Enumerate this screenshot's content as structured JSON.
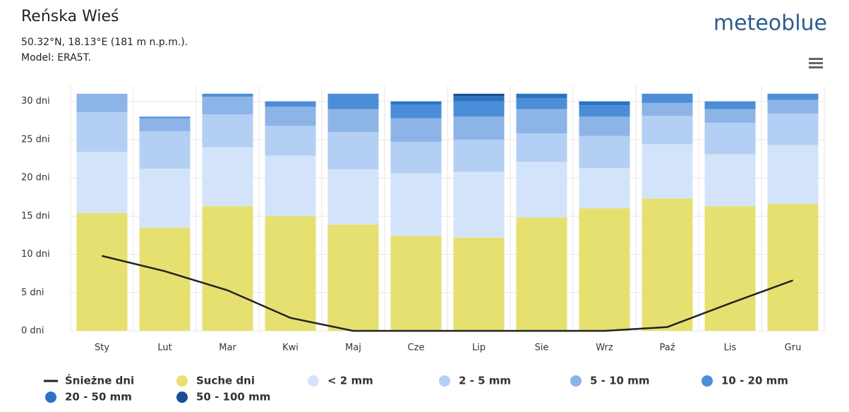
{
  "brand": "meteoblue",
  "chart_data": {
    "type": "bar",
    "stacked": true,
    "title": "Reńska Wieś",
    "subtitle": [
      "50.32°N, 18.13°E (181 m n.p.m.).",
      "Model: ERA5T."
    ],
    "categories": [
      "Sty",
      "Lut",
      "Mar",
      "Kwi",
      "Maj",
      "Cze",
      "Lip",
      "Sie",
      "Wrz",
      "Paź",
      "Lis",
      "Gru"
    ],
    "series": [
      {
        "name": "Śnieżne dni",
        "type": "line",
        "color": "#222222",
        "values": [
          9.8,
          7.8,
          5.3,
          1.7,
          0,
          0,
          0,
          0,
          0,
          0.5,
          3.6,
          6.6
        ]
      },
      {
        "name": "Suche dni",
        "color": "#e6e070",
        "values": [
          15.4,
          13.5,
          16.3,
          15.0,
          13.9,
          12.4,
          12.2,
          14.8,
          16.0,
          17.3,
          16.3,
          16.6
        ]
      },
      {
        "name": "< 2 mm",
        "color": "#d3e4fa",
        "values": [
          8.0,
          7.7,
          7.7,
          7.9,
          7.2,
          8.2,
          8.6,
          7.3,
          5.3,
          7.1,
          6.8,
          7.7
        ]
      },
      {
        "name": "2 - 5 mm",
        "color": "#b3cff3",
        "values": [
          5.2,
          4.9,
          4.3,
          3.9,
          4.9,
          4.1,
          4.2,
          3.7,
          4.2,
          3.7,
          4.1,
          4.1
        ]
      },
      {
        "name": "5 - 10 mm",
        "color": "#8db4e7",
        "values": [
          2.4,
          1.7,
          2.3,
          2.5,
          3.0,
          3.1,
          3.0,
          3.2,
          2.5,
          1.7,
          1.8,
          1.8
        ]
      },
      {
        "name": "10 - 20 mm",
        "color": "#4c8dd8",
        "values": [
          0,
          0.2,
          0.4,
          0.7,
          2.0,
          1.8,
          2.0,
          1.4,
          1.5,
          1.2,
          1.0,
          0.8
        ]
      },
      {
        "name": "20 - 50 mm",
        "color": "#2a73c2",
        "values": [
          0,
          0,
          0,
          0,
          0,
          0.4,
          0.7,
          0.6,
          0.5,
          0,
          0,
          0
        ]
      },
      {
        "name": "50 - 100 mm",
        "color": "#1a4f93",
        "values": [
          0,
          0,
          0,
          0,
          0,
          0,
          0.3,
          0,
          0,
          0,
          0,
          0
        ]
      }
    ],
    "ylim": [
      0,
      32
    ],
    "yticks": [
      {
        "value": 0,
        "label": "0 dni"
      },
      {
        "value": 5,
        "label": "5 dni"
      },
      {
        "value": 10,
        "label": "10 dni"
      },
      {
        "value": 15,
        "label": "15 dni"
      },
      {
        "value": 20,
        "label": "20 dni"
      },
      {
        "value": 25,
        "label": "25 dni"
      },
      {
        "value": 30,
        "label": "30 dni"
      }
    ],
    "grid": true
  }
}
